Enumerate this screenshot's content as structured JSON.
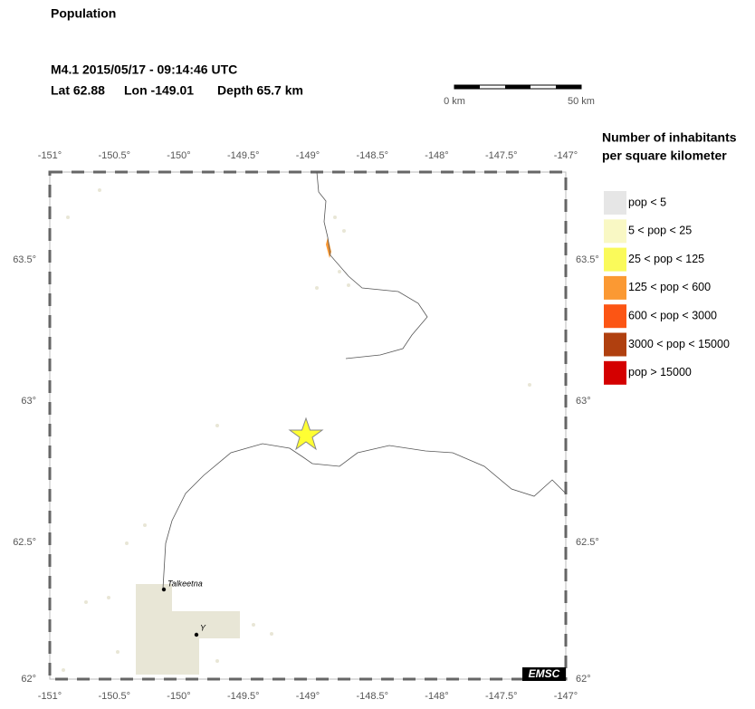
{
  "title": "Population",
  "event": {
    "line1": "M4.1  2015/05/17 - 09:14:46 UTC",
    "lat": "Lat 62.88",
    "lon": "Lon -149.01",
    "depth": "Depth  65.7 km"
  },
  "scale": {
    "start": "0 km",
    "end": "50 km"
  },
  "axes": {
    "lon_ticks": [
      "-151°",
      "-150.5°",
      "-150°",
      "-149.5°",
      "-149°",
      "-148.5°",
      "-148°",
      "-147.5°",
      "-147°"
    ],
    "lat_ticks": [
      "63.5°",
      "63°",
      "62.5°",
      "62°"
    ]
  },
  "legend": {
    "title": [
      "Number of inhabitants",
      "per square kilometer"
    ],
    "items": [
      {
        "label": "pop < 5",
        "color": "#e6e6e6"
      },
      {
        "label": "5 < pop < 25",
        "color": "#f9f8c4"
      },
      {
        "label": "25 < pop < 125",
        "color": "#fafa5a"
      },
      {
        "label": "125 < pop < 600",
        "color": "#fb9933"
      },
      {
        "label": "600 < pop < 3000",
        "color": "#fc5514"
      },
      {
        "label": "3000 < pop < 15000",
        "color": "#b0400f"
      },
      {
        "label": "pop > 15000",
        "color": "#d40000"
      }
    ]
  },
  "places": [
    "Talkeetna",
    "Y"
  ],
  "logo": "EMSC"
}
